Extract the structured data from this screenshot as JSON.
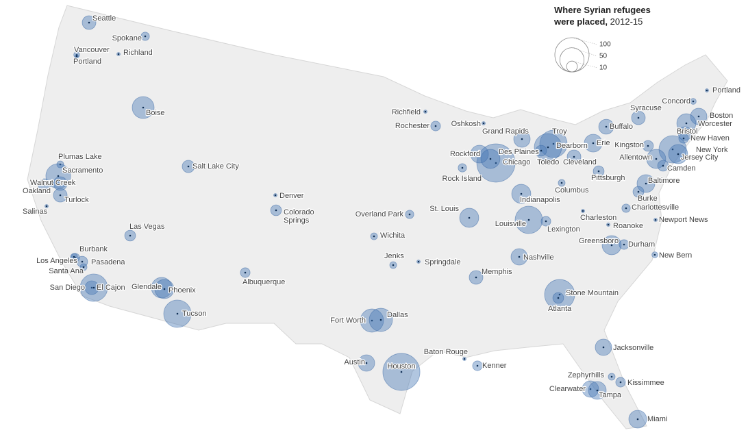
{
  "map": {
    "title": "Where Syrian refugees",
    "title_line2": "were placed,",
    "title_years": "2012-15",
    "legend": [
      100,
      50,
      10
    ],
    "cities": [
      {
        "name": "Seattle",
        "value": 16
      },
      {
        "name": "Spokane",
        "value": 6
      },
      {
        "name": "Vancouver",
        "value": 3
      },
      {
        "name": "Portland",
        "value": 1
      },
      {
        "name": "Richland",
        "value": 1
      },
      {
        "name": "Boise",
        "value": 41
      },
      {
        "name": "Plumas Lake",
        "value": 4
      },
      {
        "name": "Sacramento",
        "value": 52
      },
      {
        "name": "Oakland",
        "value": 13
      },
      {
        "name": "Walnut Creek",
        "value": 16
      },
      {
        "name": "Turlock",
        "value": 16
      },
      {
        "name": "Salinas",
        "value": 1
      },
      {
        "name": "Salt Lake City",
        "value": 13
      },
      {
        "name": "Denver",
        "value": 1
      },
      {
        "name": "Colorado\nSprings",
        "value": 10
      },
      {
        "name": "Las Vegas",
        "value": 10
      },
      {
        "name": "Burbank",
        "value": 6
      },
      {
        "name": "Los Angeles",
        "value": 4
      },
      {
        "name": "Pasadena",
        "value": 10
      },
      {
        "name": "Santa Ana",
        "value": 4
      },
      {
        "name": "San Diego",
        "value": 16
      },
      {
        "name": "El Cajon",
        "value": 64
      },
      {
        "name": "Glendale",
        "value": 36
      },
      {
        "name": "Phoenix",
        "value": 31
      },
      {
        "name": "Tucson",
        "value": 64
      },
      {
        "name": "Albuquerque",
        "value": 8
      },
      {
        "name": "Overland Park",
        "value": 6
      },
      {
        "name": "Wichita",
        "value": 4
      },
      {
        "name": "Jenks",
        "value": 4
      },
      {
        "name": "Springdale",
        "value": 1
      },
      {
        "name": "St. Louis",
        "value": 31
      },
      {
        "name": "Fort Worth",
        "value": 46
      },
      {
        "name": "Dallas",
        "value": 46
      },
      {
        "name": "Austin",
        "value": 23
      },
      {
        "name": "Houston",
        "value": 117
      },
      {
        "name": "Baton Rouge",
        "value": 1
      },
      {
        "name": "Kenner",
        "value": 8
      },
      {
        "name": "Memphis",
        "value": 16
      },
      {
        "name": "Nashville",
        "value": 23
      },
      {
        "name": "Louisville",
        "value": 64
      },
      {
        "name": "Lexington",
        "value": 8
      },
      {
        "name": "Indianapolis",
        "value": 31
      },
      {
        "name": "Columbus",
        "value": 4
      },
      {
        "name": "Charleston",
        "value": 1
      },
      {
        "name": "Chicago",
        "value": 125
      },
      {
        "name": "Des Plaines",
        "value": 31
      },
      {
        "name": "Rockford",
        "value": 27
      },
      {
        "name": "Rock Island",
        "value": 6
      },
      {
        "name": "Richfield",
        "value": 1
      },
      {
        "name": "Rochester",
        "value": 8
      },
      {
        "name": "Oshkosh",
        "value": 1
      },
      {
        "name": "Grand Rapids",
        "value": 23
      },
      {
        "name": "Troy",
        "value": 64
      },
      {
        "name": "Dearborn",
        "value": 64
      },
      {
        "name": "Toledo",
        "value": 10
      },
      {
        "name": "Cleveland",
        "value": 16
      },
      {
        "name": "Erie",
        "value": 27
      },
      {
        "name": "Pittsburgh",
        "value": 10
      },
      {
        "name": "Buffalo",
        "value": 19
      },
      {
        "name": "Syracuse",
        "value": 16
      },
      {
        "name": "Concord",
        "value": 3
      },
      {
        "name": "Portland",
        "value": 1
      },
      {
        "name": "Boston",
        "value": 23
      },
      {
        "name": "Worcester",
        "value": 31
      },
      {
        "name": "Bristol",
        "value": 16
      },
      {
        "name": "New Haven",
        "value": 8
      },
      {
        "name": "Kingston",
        "value": 10
      },
      {
        "name": "New York",
        "value": 64
      },
      {
        "name": "Jersey City",
        "value": 31
      },
      {
        "name": "Allentown",
        "value": 31
      },
      {
        "name": "Camden",
        "value": 10
      },
      {
        "name": "Baltimore",
        "value": 27
      },
      {
        "name": "Burke",
        "value": 10
      },
      {
        "name": "Charlottesville",
        "value": 6
      },
      {
        "name": "Roanoke",
        "value": 1
      },
      {
        "name": "Newport News",
        "value": 1
      },
      {
        "name": "Greensboro",
        "value": 31
      },
      {
        "name": "Durham",
        "value": 8
      },
      {
        "name": "New Bern",
        "value": 3
      },
      {
        "name": "Stone Mountain",
        "value": 77
      },
      {
        "name": "Atlanta",
        "value": 10
      },
      {
        "name": "Jacksonville",
        "value": 23
      },
      {
        "name": "Zephyrhills",
        "value": 4
      },
      {
        "name": "Kissimmee",
        "value": 8
      },
      {
        "name": "Clearwater",
        "value": 23
      },
      {
        "name": "Tampa",
        "value": 27
      },
      {
        "name": "Miami",
        "value": 27
      }
    ]
  }
}
